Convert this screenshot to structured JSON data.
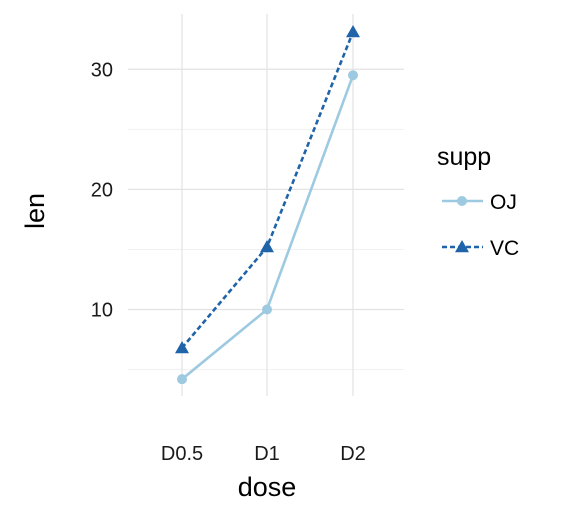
{
  "chart_data": {
    "type": "line",
    "categories": [
      "D0.5",
      "D1",
      "D2"
    ],
    "series": [
      {
        "name": "OJ",
        "values": [
          4.2,
          10.0,
          29.5
        ],
        "color": "#9ecae1",
        "line": "solid",
        "marker": "circle"
      },
      {
        "name": "VC",
        "values": [
          6.8,
          15.2,
          33.1
        ],
        "color": "#1f63a8",
        "line": "dashed",
        "marker": "triangle"
      }
    ],
    "xlabel": "dose",
    "ylabel": "len",
    "yticks": [
      10,
      20,
      30
    ],
    "ylim": [
      2.8,
      34.6
    ],
    "grid": true,
    "legend": {
      "title": "supp",
      "position": "right"
    }
  }
}
